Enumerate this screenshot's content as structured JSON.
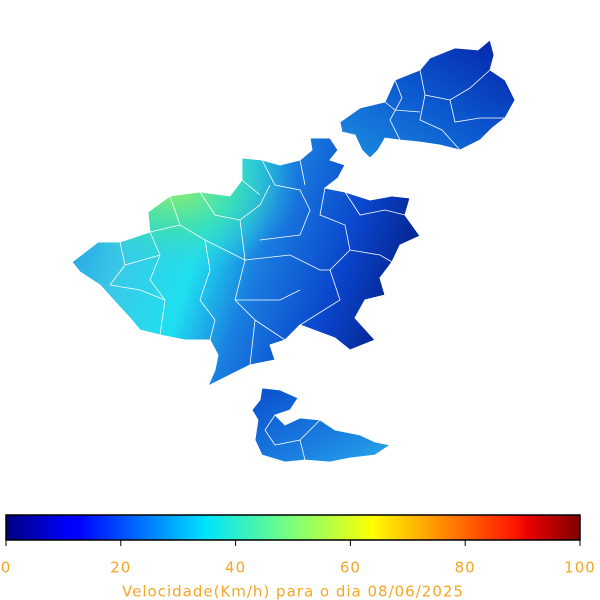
{
  "colorbar": {
    "colormap": "jet",
    "lim": [
      0,
      100
    ],
    "ticks": [
      0,
      20,
      40,
      60,
      80,
      100
    ],
    "label": "Velocidade(Km/h) para o dia 08/06/2025"
  }
}
